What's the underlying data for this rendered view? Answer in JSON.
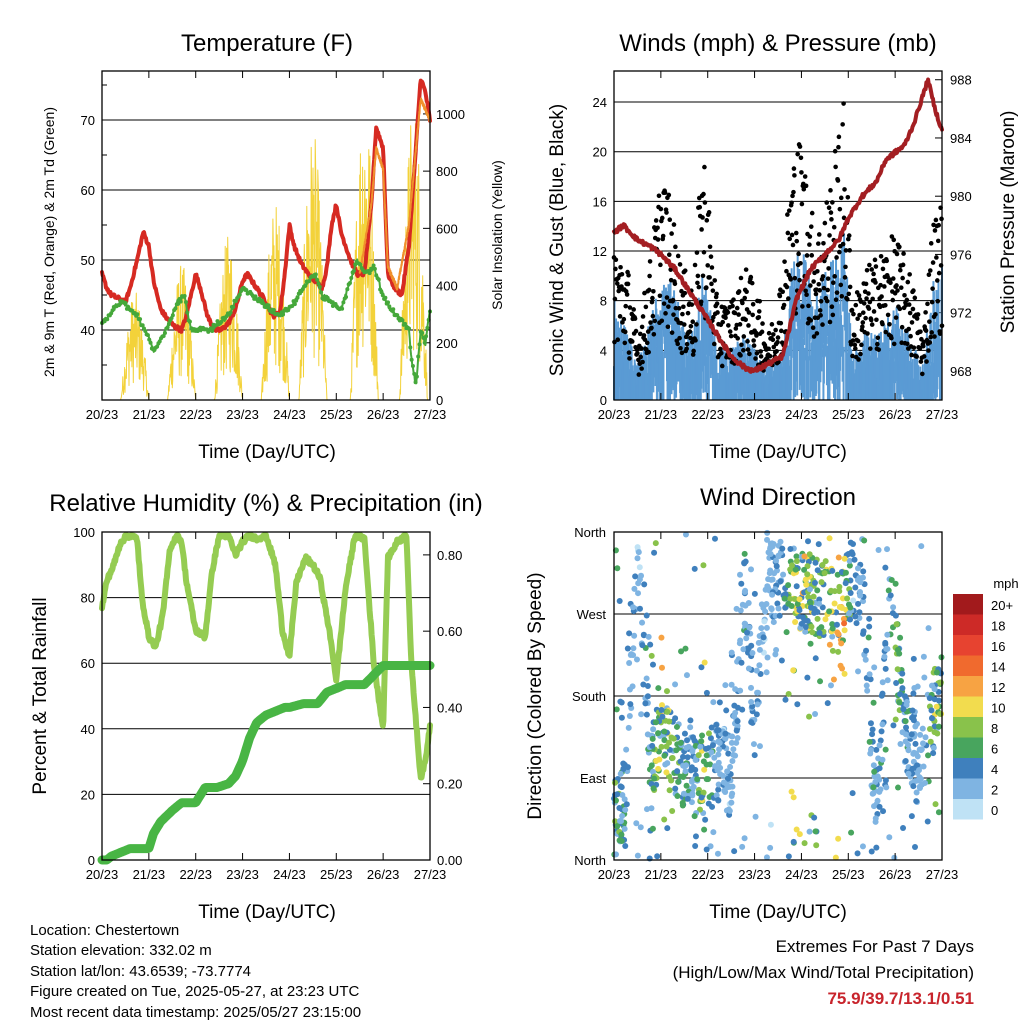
{
  "x_ticks": [
    "20/23",
    "21/23",
    "22/23",
    "23/23",
    "24/23",
    "25/23",
    "26/23",
    "27/23"
  ],
  "chart_data": [
    {
      "type": "line",
      "title": "Temperature (F)",
      "xlabel": "Time (Day/UTC)",
      "ylabel": "2m & 9m T (Red, Orange) & 2m Td (Green)",
      "y2label": "Solar Insolation (Yellow)",
      "ylim": [
        30,
        77
      ],
      "y_ticks": [
        40,
        50,
        60,
        70
      ],
      "y2lim": [
        0,
        1150
      ],
      "y2_ticks": [
        0,
        200,
        400,
        600,
        800,
        1000
      ],
      "xlim": [
        0,
        7
      ],
      "series": [
        {
          "axis": "left",
          "color": "#d62a22",
          "width": 4,
          "x": [
            0,
            0.1,
            0.2,
            0.35,
            0.5,
            0.6,
            0.75,
            0.88,
            1.0,
            1.1,
            1.25,
            1.4,
            1.55,
            1.7,
            1.8,
            1.9,
            2.0,
            2.1,
            2.25,
            2.4,
            2.55,
            2.7,
            2.85,
            3.0,
            3.1,
            3.3,
            3.5,
            3.65,
            3.8,
            3.9,
            4.0,
            4.1,
            4.25,
            4.4,
            4.55,
            4.7,
            4.8,
            4.9,
            5.0,
            5.1,
            5.3,
            5.45,
            5.6,
            5.75,
            5.85,
            6.0,
            6.1,
            6.25,
            6.4,
            6.55,
            6.7,
            6.8,
            6.9,
            7.0
          ],
          "y": [
            48,
            46,
            45,
            44.5,
            44,
            46,
            50,
            54,
            52,
            47,
            43,
            41.5,
            40.5,
            40,
            42,
            45,
            48,
            46,
            42,
            40,
            40,
            41,
            43,
            47,
            48,
            46,
            44,
            42,
            42.5,
            48,
            55,
            52,
            49.5,
            48,
            47,
            46,
            49,
            55,
            58,
            54,
            50,
            48,
            48,
            58,
            69,
            66,
            48,
            46,
            45,
            52,
            66,
            76,
            74,
            70
          ]
        },
        {
          "axis": "left",
          "color": "#f0902c",
          "width": 2,
          "x": [
            5.5,
            5.75,
            5.85,
            6.0,
            6.1,
            6.3,
            6.55,
            6.8,
            7.0
          ],
          "y": [
            48,
            58,
            66,
            63,
            49,
            46,
            55,
            73,
            70
          ]
        },
        {
          "axis": "left",
          "color": "#45a83a",
          "width": 3,
          "dots": true,
          "x": [
            0,
            0.15,
            0.3,
            0.45,
            0.6,
            0.75,
            0.9,
            1.0,
            1.1,
            1.2,
            1.35,
            1.5,
            1.6,
            1.75,
            1.9,
            2.1,
            2.3,
            2.5,
            2.7,
            2.85,
            3.0,
            3.2,
            3.4,
            3.6,
            3.8,
            4.0,
            4.2,
            4.4,
            4.55,
            4.7,
            4.9,
            5.1,
            5.3,
            5.45,
            5.6,
            5.8,
            6.0,
            6.15,
            6.3,
            6.45,
            6.55,
            6.6,
            6.7,
            6.8,
            6.9,
            7.0
          ],
          "y": [
            41,
            42,
            43.5,
            44,
            43,
            42,
            40,
            39,
            37,
            38,
            40,
            42,
            44,
            45,
            40,
            40,
            40,
            41,
            42,
            44,
            46,
            45,
            44,
            43,
            42,
            43,
            45,
            47,
            48,
            45,
            44,
            43,
            47,
            50,
            48,
            49,
            45,
            43,
            42,
            41,
            40,
            36,
            32,
            40,
            38,
            43
          ]
        }
      ],
      "solar": {
        "color": "#f3d23a",
        "day_peaks": [
          [
            0.7,
            380
          ],
          [
            1.7,
            480
          ],
          [
            2.7,
            580
          ],
          [
            3.7,
            700
          ],
          [
            4.5,
            950
          ],
          [
            5.6,
            1100
          ],
          [
            6.65,
            1050
          ]
        ]
      }
    },
    {
      "type": "scatter",
      "title": "Winds (mph) & Pressure (mb)",
      "xlabel": "Time (Day/UTC)",
      "ylabel": "Sonic Wind & Gust (Blue, Black)",
      "y2label": "Station Pressure (Maroon)",
      "ylim": [
        0,
        26.5
      ],
      "y_ticks": [
        0,
        4,
        8,
        12,
        16,
        20,
        24
      ],
      "y2lim": [
        966,
        988.6
      ],
      "y2_ticks": [
        968,
        972,
        976,
        980,
        984,
        988
      ],
      "xlim": [
        0,
        7
      ],
      "wind_profile": {
        "x": [
          0,
          0.3,
          0.5,
          0.8,
          1.0,
          1.2,
          1.45,
          1.7,
          1.9,
          2.2,
          2.5,
          2.8,
          3.0,
          3.3,
          3.6,
          3.8,
          4.0,
          4.3,
          4.6,
          4.9,
          5.1,
          5.4,
          5.7,
          6.0,
          6.3,
          6.6,
          6.8,
          7.0
        ],
        "wind": [
          6,
          4,
          2,
          5,
          9,
          7,
          5,
          4,
          8,
          3,
          3,
          4,
          3,
          2,
          3,
          8,
          9,
          6,
          8,
          10,
          3,
          4,
          4,
          6,
          4,
          2,
          7,
          8
        ],
        "gust": [
          10,
          8,
          4,
          9,
          14,
          12,
          8,
          7,
          16,
          6,
          6,
          8,
          7,
          4,
          8,
          15,
          16,
          10,
          13,
          18,
          6,
          8,
          9,
          10,
          8,
          4,
          11,
          12
        ]
      },
      "pressure": {
        "color": "#a31e22",
        "x": [
          0,
          0.2,
          0.5,
          0.8,
          1.0,
          1.3,
          1.6,
          1.9,
          2.2,
          2.5,
          2.8,
          3.0,
          3.3,
          3.6,
          3.9,
          4.2,
          4.5,
          4.8,
          5.0,
          5.3,
          5.6,
          5.8,
          6.0,
          6.2,
          6.4,
          6.55,
          6.7,
          6.85,
          7.0
        ],
        "y": [
          977.5,
          978,
          977,
          976.5,
          976,
          975,
          973.5,
          972,
          970.5,
          969,
          968.2,
          968,
          968.5,
          969,
          973,
          975,
          976,
          977,
          978.5,
          980,
          981,
          982.5,
          983,
          983.5,
          985,
          986.5,
          988,
          986,
          984.5
        ]
      }
    },
    {
      "type": "line",
      "title": "Relative Humidity (%) & Precipitation (in)",
      "xlabel": "Time (Day/UTC)",
      "ylabel": "Percent & Total Rainfall",
      "ylim": [
        0,
        100
      ],
      "y_ticks": [
        0,
        20,
        40,
        60,
        80,
        100
      ],
      "y2lim": [
        0,
        0.86
      ],
      "y2_ticks": [
        "0.00",
        "0.20",
        "0.40",
        "0.60",
        "0.80"
      ],
      "xlim": [
        0,
        7
      ],
      "series": [
        {
          "name": "rh",
          "axis": "left",
          "color": "#95cc52",
          "width": 6,
          "x": [
            0,
            0.1,
            0.25,
            0.4,
            0.55,
            0.75,
            0.85,
            1.0,
            1.15,
            1.3,
            1.45,
            1.6,
            1.7,
            1.8,
            2.0,
            2.2,
            2.35,
            2.5,
            2.7,
            2.85,
            3.0,
            3.15,
            3.3,
            3.5,
            3.7,
            3.85,
            4.0,
            4.15,
            4.35,
            4.5,
            4.65,
            4.85,
            5.0,
            5.2,
            5.4,
            5.6,
            5.8,
            6.0,
            6.1,
            6.3,
            6.5,
            6.6,
            6.8,
            6.9,
            7.0
          ],
          "y": [
            77,
            85,
            90,
            97,
            99,
            98,
            80,
            68,
            65,
            75,
            95,
            99,
            97,
            85,
            70,
            68,
            88,
            99,
            99,
            93,
            97,
            99,
            98,
            99,
            90,
            70,
            62,
            85,
            92,
            90,
            86,
            70,
            55,
            83,
            99,
            98,
            60,
            40,
            92,
            97,
            99,
            60,
            25,
            30,
            41
          ]
        },
        {
          "name": "precip",
          "axis": "right",
          "color": "#48b544",
          "width": 9,
          "x": [
            0,
            0.1,
            0.2,
            0.4,
            0.6,
            0.8,
            1.0,
            1.1,
            1.25,
            1.5,
            1.7,
            1.85,
            2.0,
            2.2,
            2.45,
            2.7,
            2.85,
            3.0,
            3.15,
            3.3,
            3.5,
            3.7,
            3.9,
            4.0,
            4.3,
            4.6,
            4.8,
            5.0,
            5.2,
            5.6,
            6.0,
            6.1,
            7.0
          ],
          "y": [
            0,
            0,
            0.01,
            0.02,
            0.03,
            0.03,
            0.03,
            0.07,
            0.1,
            0.13,
            0.15,
            0.15,
            0.15,
            0.19,
            0.19,
            0.2,
            0.22,
            0.26,
            0.32,
            0.36,
            0.38,
            0.39,
            0.4,
            0.4,
            0.41,
            0.41,
            0.44,
            0.45,
            0.46,
            0.46,
            0.51,
            0.51,
            0.51
          ]
        }
      ]
    },
    {
      "type": "scatter",
      "title": "Wind Direction",
      "xlabel": "Time (Day/UTC)",
      "ylabel": "Direction (Colored By Speed)",
      "y_ticks": [
        "North",
        "East",
        "South",
        "West",
        "North"
      ],
      "ylim": [
        0,
        360
      ],
      "xlim": [
        0,
        7
      ],
      "direction_profile": {
        "x": [
          0,
          0.25,
          0.5,
          0.8,
          1.0,
          1.3,
          1.6,
          1.9,
          2.2,
          2.5,
          2.8,
          3.0,
          3.3,
          3.6,
          3.9,
          4.2,
          4.5,
          4.8,
          5.0,
          5.3,
          5.6,
          5.9,
          6.2,
          6.5,
          6.8,
          7.0
        ],
        "dir": [
          40,
          70,
          330,
          100,
          130,
          115,
          95,
          85,
          110,
          90,
          300,
          160,
          310,
          310,
          300,
          290,
          290,
          260,
          310,
          300,
          50,
          280,
          150,
          100,
          160,
          180
        ]
      },
      "legend": {
        "title": "mph",
        "labels": [
          "20+",
          "18",
          "16",
          "14",
          "12",
          "10",
          "8",
          "6",
          "4",
          "2",
          "0"
        ],
        "colors": [
          "#a21a1c",
          "#cd2a27",
          "#e74330",
          "#f06a2e",
          "#f7a343",
          "#f2dc4e",
          "#89c24b",
          "#48a55e",
          "#3f80bd",
          "#7fb4e2",
          "#bfe2f5"
        ]
      }
    }
  ],
  "info": {
    "location": "Location: Chestertown",
    "elevation": "Station elevation: 332.02 m",
    "latlon": "Station lat/lon: 43.6539; -73.7774",
    "created": "Figure created on Tue, 2025-05-27, at 23:23 UTC",
    "recent": "Most recent data timestamp: 2025/05/27 23:15:00"
  },
  "extremes": {
    "title": "Extremes For Past 7 Days",
    "subtitle": "(High/Low/Max Wind/Total Precipitation)",
    "value": "75.9/39.7/13.1/0.51"
  }
}
